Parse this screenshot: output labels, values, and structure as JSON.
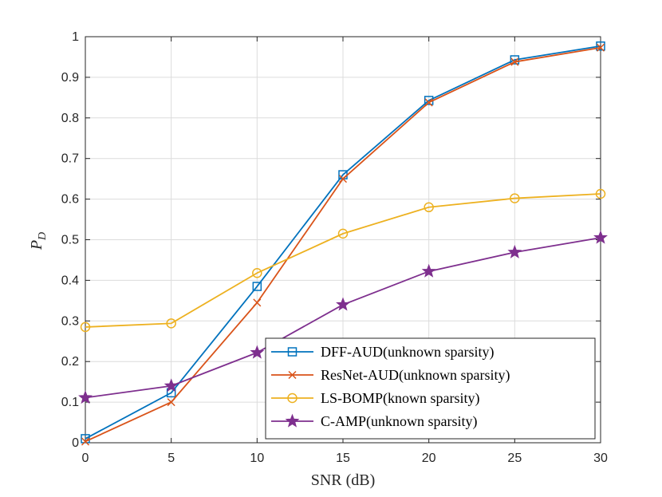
{
  "chart_data": {
    "type": "line",
    "title": "",
    "xlabel": "SNR (dB)",
    "ylabel": "P",
    "ylabel_sub": "D",
    "xlim": [
      0,
      30
    ],
    "ylim": [
      0,
      1
    ],
    "grid": true,
    "legend_position": "bottom-right",
    "x": [
      0,
      5,
      10,
      15,
      20,
      25,
      30
    ],
    "xticks": [
      "0",
      "5",
      "10",
      "15",
      "20",
      "25",
      "30"
    ],
    "yticks": [
      "0",
      "0.1",
      "0.2",
      "0.3",
      "0.4",
      "0.5",
      "0.6",
      "0.7",
      "0.8",
      "0.9",
      "1"
    ],
    "series": [
      {
        "name": "DFF-AUD(unknown sparsity)",
        "color": "#0072BD",
        "marker": "square",
        "values": [
          0.01,
          0.123,
          0.385,
          0.66,
          0.843,
          0.943,
          0.977
        ]
      },
      {
        "name": "ResNet-AUD(unknown sparsity)",
        "color": "#D95319",
        "marker": "x",
        "values": [
          0.003,
          0.1,
          0.345,
          0.65,
          0.838,
          0.938,
          0.973
        ]
      },
      {
        "name": "LS-BOMP(known sparsity)",
        "color": "#EDB120",
        "marker": "circle",
        "values": [
          0.285,
          0.294,
          0.418,
          0.515,
          0.58,
          0.602,
          0.613
        ]
      },
      {
        "name": "C-AMP(unknown sparsity)",
        "color": "#7E2F8E",
        "marker": "star",
        "values": [
          0.111,
          0.14,
          0.222,
          0.34,
          0.422,
          0.469,
          0.505
        ]
      }
    ]
  }
}
